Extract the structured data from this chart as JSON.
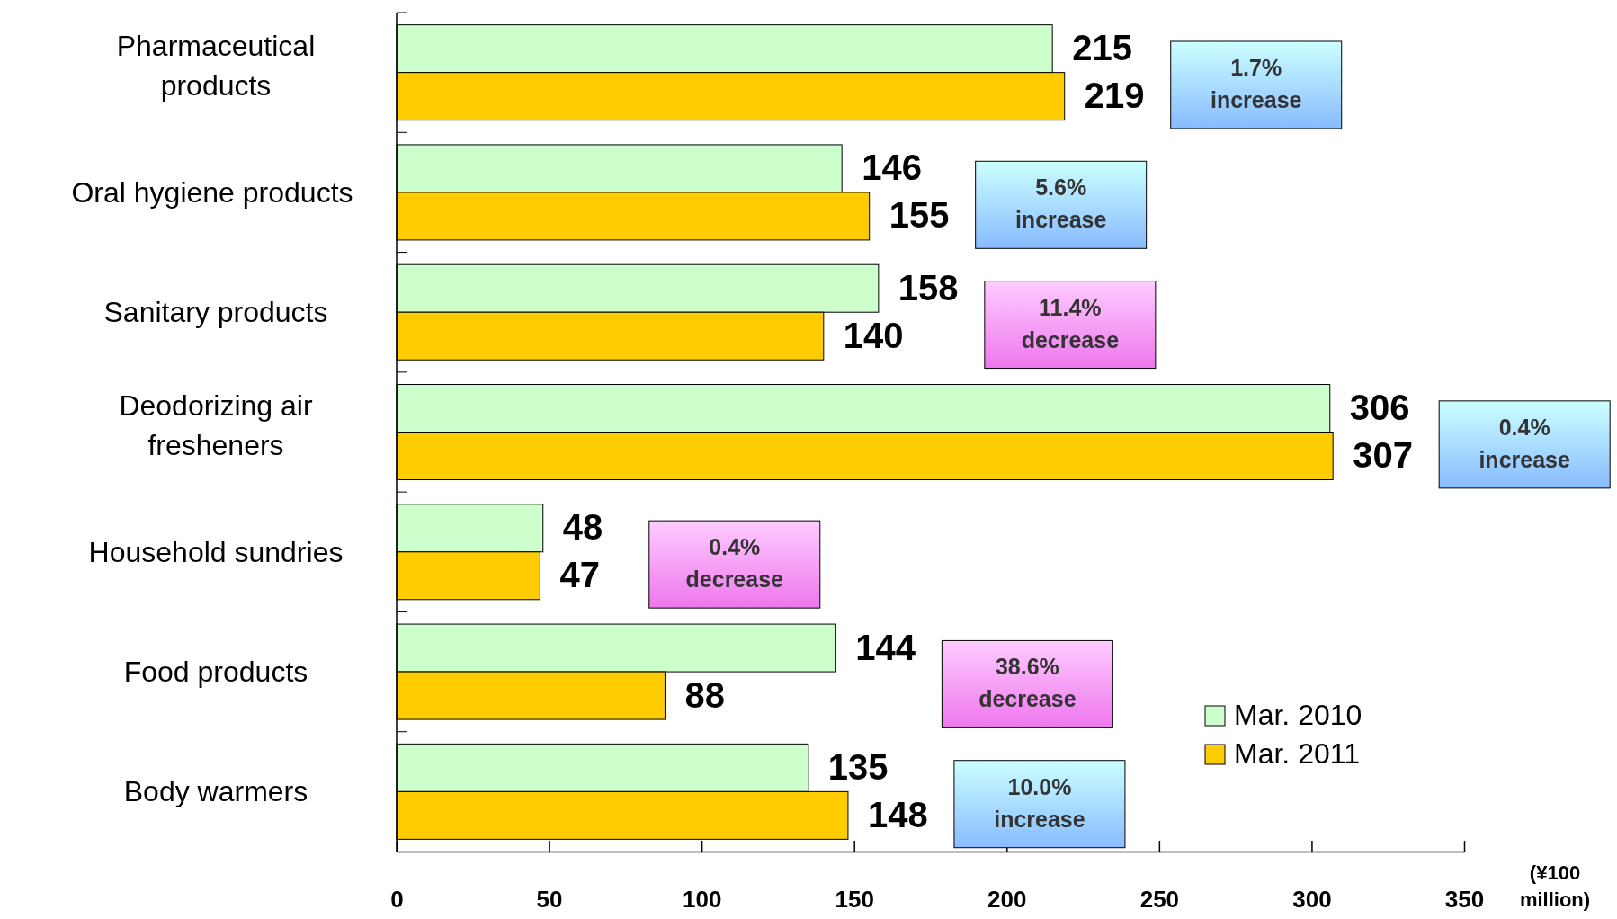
{
  "chart_data": {
    "type": "bar",
    "orientation": "horizontal",
    "categories": [
      "Pharmaceutical products",
      "Oral hygiene products",
      "Sanitary products",
      "Deodorizing air fresheners",
      "Household sundries",
      "Food products",
      "Body warmers"
    ],
    "series": [
      {
        "name": "Mar. 2010",
        "color": "#ccffcc",
        "values": [
          215,
          146,
          158,
          306,
          48,
          144,
          135
        ]
      },
      {
        "name": "Mar. 2011",
        "color": "#ffcc00",
        "values": [
          219,
          155,
          140,
          307,
          47,
          88,
          148
        ]
      }
    ],
    "xlim": [
      0,
      350
    ],
    "xticks": [
      0,
      50,
      100,
      150,
      200,
      250,
      300,
      350
    ],
    "xlabel": "(¥100 million)",
    "data_labels": true,
    "legend": "bottom right",
    "grid": false,
    "annotations": [
      "1.7% increase",
      "5.6% increase",
      "11.4% decrease",
      "0.4% increase",
      "0.4% decrease",
      "38.6% decrease",
      "10.0% increase"
    ]
  }
}
